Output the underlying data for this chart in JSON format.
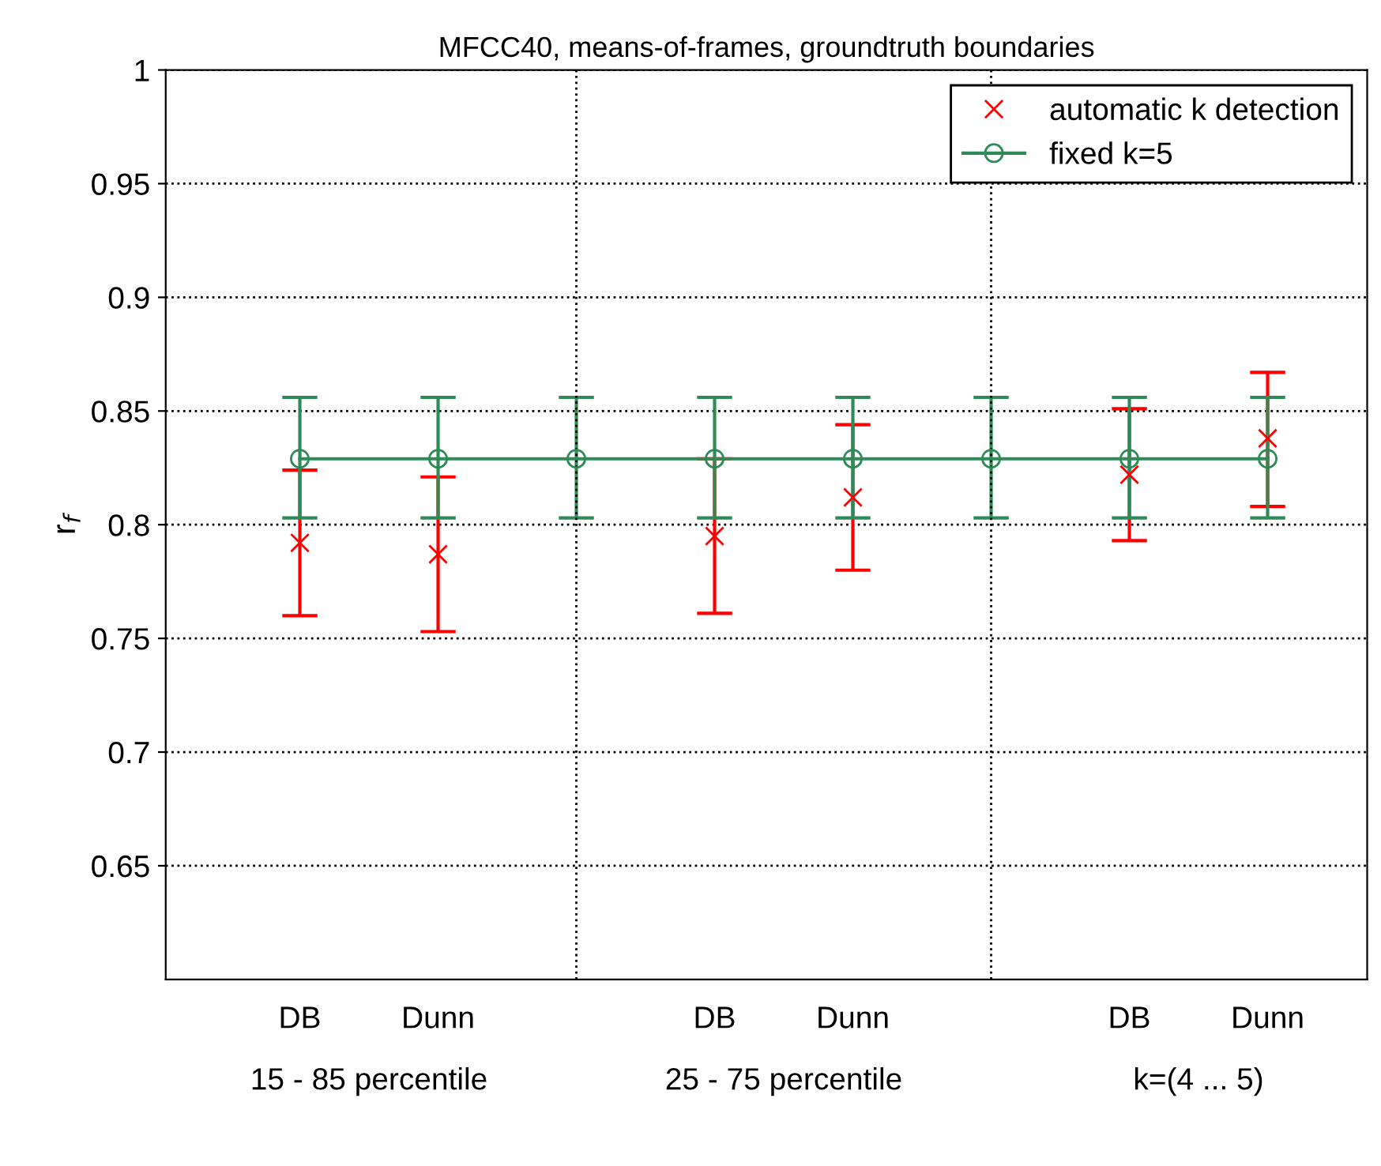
{
  "chart_data": {
    "type": "line",
    "title": "MFCC40, means-of-frames, groundtruth boundaries",
    "ylabel": "r$_{f}$",
    "categories": [
      "DB",
      "Dunn",
      null,
      "DB",
      "Dunn",
      null,
      "DB",
      "Dunn"
    ],
    "ylim": [
      0.6,
      1
    ],
    "yticks": [
      0.65,
      0.7,
      0.75,
      0.8,
      0.85,
      0.9,
      0.95,
      1
    ],
    "series": [
      {
        "name": "automatic k detection",
        "type": "scatter",
        "marker": "cross",
        "color": "#ff0000",
        "values": [
          0.792,
          0.787,
          null,
          0.795,
          0.812,
          null,
          0.822,
          0.838
        ],
        "errors": [
          [
            0.76,
            0.824
          ],
          [
            0.753,
            0.821
          ],
          null,
          [
            0.761,
            0.829
          ],
          [
            0.78,
            0.844
          ],
          null,
          [
            0.793,
            0.851
          ],
          [
            0.808,
            0.867
          ]
        ]
      },
      {
        "name": "fixed k=5",
        "marker": "circle",
        "line_style": "solid",
        "color": "#2e8b57",
        "values": [
          0.829,
          0.829,
          0.829,
          0.829,
          0.829,
          0.829,
          0.829,
          0.829
        ],
        "errors": [
          [
            0.803,
            0.856
          ],
          [
            0.803,
            0.856
          ],
          [
            0.803,
            0.856
          ],
          [
            0.803,
            0.856
          ],
          [
            0.803,
            0.856
          ],
          [
            0.803,
            0.856
          ],
          [
            0.803,
            0.856
          ],
          [
            0.803,
            0.856
          ]
        ]
      }
    ],
    "annotations": [
      "15 - 85 percentile",
      "25 - 75 percentile",
      "k=(4 ... 5)"
    ],
    "grid": true,
    "legend": "top right"
  }
}
